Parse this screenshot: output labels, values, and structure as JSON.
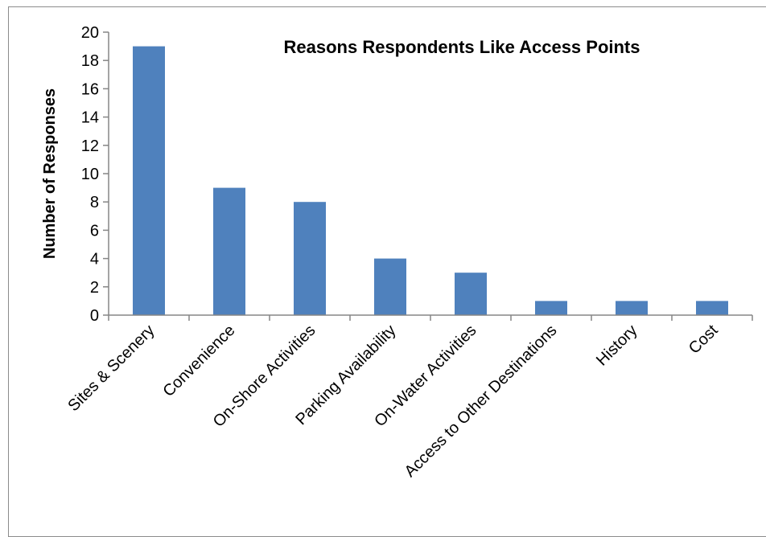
{
  "chart_data": {
    "type": "bar",
    "title": "Reasons Respondents Like Access Points",
    "xlabel": "",
    "ylabel": "Number of Responses",
    "ylim": [
      0,
      20
    ],
    "yticks": [
      0,
      2,
      4,
      6,
      8,
      10,
      12,
      14,
      16,
      18,
      20
    ],
    "categories": [
      "Sites & Scenery",
      "Convenience",
      "On-Shore Activities",
      "Parking Availability",
      "On-Water Activities",
      "Access to Other Destinations",
      "History",
      "Cost"
    ],
    "values": [
      19,
      9,
      8,
      4,
      3,
      1,
      1,
      1
    ],
    "legend": "none",
    "grid": false,
    "colors": {
      "bar": "#4f81bd",
      "axis": "#868686",
      "text": "#000000"
    }
  }
}
